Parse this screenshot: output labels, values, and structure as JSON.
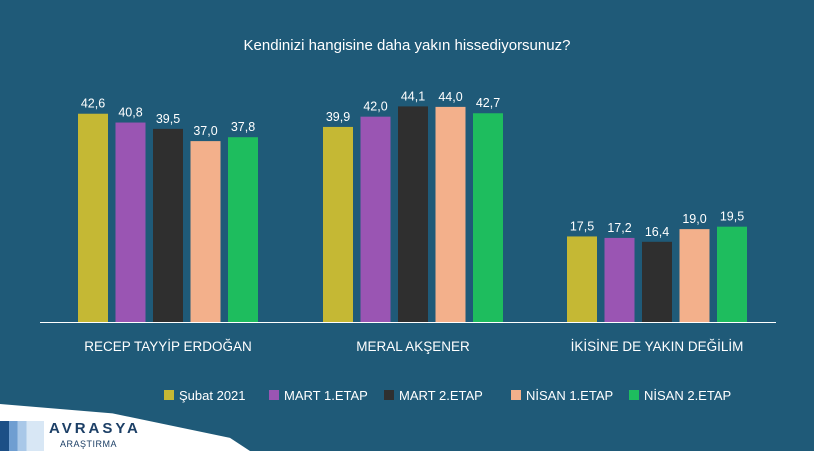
{
  "chart_data": {
    "type": "bar",
    "title": "Kendinizi hangisine daha yakın hissediyorsunuz?",
    "categories": [
      "RECEP TAYYİP ERDOĞAN",
      "MERAL AKŞENER",
      "İKİSİNE DE YAKIN DEĞİLİM"
    ],
    "series": [
      {
        "name": "Şubat 2021",
        "color": "#c5b834",
        "values": [
          42.6,
          39.9,
          17.5
        ],
        "labels": [
          "42,6",
          "39,9",
          "17,5"
        ]
      },
      {
        "name": "MART 1.ETAP",
        "color": "#9a55b3",
        "values": [
          40.8,
          42.0,
          17.2
        ],
        "labels": [
          "40,8",
          "42,0",
          "17,2"
        ]
      },
      {
        "name": "MART 2.ETAP",
        "color": "#2f2f2f",
        "values": [
          39.5,
          44.1,
          16.4
        ],
        "labels": [
          "39,5",
          "44,1",
          "16,4"
        ]
      },
      {
        "name": "NİSAN 1.ETAP",
        "color": "#f3b08b",
        "values": [
          37.0,
          44.0,
          19.0
        ],
        "labels": [
          "37,0",
          "44,0",
          "19,0"
        ]
      },
      {
        "name": "NİSAN 2.ETAP",
        "color": "#1ebd5e",
        "values": [
          37.8,
          42.7,
          19.5
        ],
        "labels": [
          "37,8",
          "42,7",
          "19,5"
        ]
      }
    ],
    "ylim": [
      0,
      45
    ],
    "grid": false,
    "legend_position": "bottom"
  },
  "brand": {
    "name": "AVRASYA",
    "sub": "ARAŞTIRMA"
  },
  "colors": {
    "background": "#1f5a78",
    "axis": "#ffffff"
  }
}
